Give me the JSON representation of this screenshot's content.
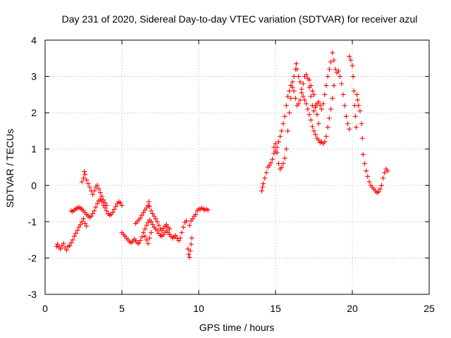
{
  "chart_data": {
    "type": "scatter",
    "title": "Day 231 of 2020, Sidereal Day-to-day VTEC variation (SDTVAR) for receiver azul",
    "xlabel": "GPS time / hours",
    "ylabel": "SDTVAR / TECUs",
    "xlim": [
      0,
      25
    ],
    "ylim": [
      -3,
      4
    ],
    "grid": true,
    "marker": "+",
    "color": "#ff0000",
    "xticks": [
      0,
      5,
      10,
      15,
      20,
      25
    ],
    "xtick_labels": [
      "0",
      "5",
      "10",
      "15",
      "20",
      "25"
    ],
    "yticks": [
      -3,
      -2,
      -1,
      0,
      1,
      2,
      3,
      4
    ],
    "ytick_labels": [
      "-3",
      "-2",
      "-1",
      "0",
      "1",
      "2",
      "3",
      "4"
    ],
    "series": [
      {
        "name": "SDTVAR",
        "points": [
          [
            0.75,
            -1.68
          ],
          [
            0.8,
            -1.62
          ],
          [
            0.9,
            -1.7
          ],
          [
            1.0,
            -1.75
          ],
          [
            1.1,
            -1.66
          ],
          [
            1.2,
            -1.6
          ],
          [
            1.3,
            -1.72
          ],
          [
            1.4,
            -1.78
          ],
          [
            1.5,
            -1.68
          ],
          [
            1.6,
            -1.66
          ],
          [
            1.7,
            -1.58
          ],
          [
            1.8,
            -1.5
          ],
          [
            1.9,
            -1.4
          ],
          [
            2.0,
            -1.32
          ],
          [
            2.1,
            -1.24
          ],
          [
            2.2,
            -1.15
          ],
          [
            2.3,
            -1.08
          ],
          [
            2.4,
            -1.0
          ],
          [
            2.5,
            -0.92
          ],
          [
            2.6,
            -1.05
          ],
          [
            2.7,
            -1.12
          ],
          [
            1.7,
            -0.7
          ],
          [
            1.8,
            -0.72
          ],
          [
            1.9,
            -0.68
          ],
          [
            2.0,
            -0.65
          ],
          [
            2.1,
            -0.62
          ],
          [
            2.2,
            -0.6
          ],
          [
            2.3,
            -0.63
          ],
          [
            2.4,
            -0.66
          ],
          [
            2.5,
            -0.7
          ],
          [
            2.6,
            -0.75
          ],
          [
            2.7,
            -0.8
          ],
          [
            2.8,
            -0.84
          ],
          [
            2.9,
            -0.88
          ],
          [
            3.0,
            -0.85
          ],
          [
            3.1,
            -0.78
          ],
          [
            3.2,
            -0.7
          ],
          [
            3.3,
            -0.6
          ],
          [
            3.4,
            -0.5
          ],
          [
            3.5,
            -0.42
          ],
          [
            3.6,
            -0.38
          ],
          [
            3.7,
            -0.45
          ],
          [
            3.8,
            -0.55
          ],
          [
            3.9,
            -0.62
          ],
          [
            4.0,
            -0.7
          ],
          [
            4.1,
            -0.78
          ],
          [
            4.2,
            -0.82
          ],
          [
            4.3,
            -0.8
          ],
          [
            4.4,
            -0.74
          ],
          [
            4.5,
            -0.66
          ],
          [
            4.6,
            -0.58
          ],
          [
            4.7,
            -0.5
          ],
          [
            4.8,
            -0.45
          ],
          [
            4.9,
            -0.48
          ],
          [
            5.0,
            -0.55
          ],
          [
            2.4,
            0.1
          ],
          [
            2.5,
            0.2
          ],
          [
            2.55,
            0.38
          ],
          [
            2.6,
            0.3
          ],
          [
            2.7,
            0.15
          ],
          [
            2.8,
            0.05
          ],
          [
            2.9,
            -0.05
          ],
          [
            3.0,
            -0.15
          ],
          [
            3.1,
            -0.25
          ],
          [
            3.2,
            -0.15
          ],
          [
            3.3,
            -0.05
          ],
          [
            3.4,
            0.0
          ],
          [
            3.5,
            -0.1
          ],
          [
            3.6,
            -0.2
          ],
          [
            3.7,
            -0.3
          ],
          [
            3.8,
            -0.4
          ],
          [
            3.9,
            -0.48
          ],
          [
            4.0,
            -0.55
          ],
          [
            5.0,
            -1.3
          ],
          [
            5.1,
            -1.35
          ],
          [
            5.2,
            -1.4
          ],
          [
            5.3,
            -1.45
          ],
          [
            5.4,
            -1.5
          ],
          [
            5.5,
            -1.55
          ],
          [
            5.6,
            -1.58
          ],
          [
            5.7,
            -1.54
          ],
          [
            5.8,
            -1.48
          ],
          [
            5.9,
            -1.52
          ],
          [
            6.0,
            -1.58
          ],
          [
            6.1,
            -1.6
          ],
          [
            6.2,
            -1.52
          ],
          [
            6.3,
            -1.42
          ],
          [
            6.4,
            -1.3
          ],
          [
            6.5,
            -1.2
          ],
          [
            6.6,
            -1.1
          ],
          [
            6.7,
            -1.02
          ],
          [
            6.8,
            -0.95
          ],
          [
            6.9,
            -1.0
          ],
          [
            7.0,
            -1.08
          ],
          [
            7.1,
            -1.15
          ],
          [
            7.2,
            -1.2
          ],
          [
            7.3,
            -1.25
          ],
          [
            7.4,
            -1.32
          ],
          [
            7.5,
            -1.38
          ],
          [
            7.6,
            -1.4
          ],
          [
            7.7,
            -1.36
          ],
          [
            7.8,
            -1.3
          ],
          [
            7.9,
            -1.25
          ],
          [
            8.0,
            -1.3
          ],
          [
            8.1,
            -1.35
          ],
          [
            8.2,
            -1.4
          ],
          [
            8.3,
            -1.45
          ],
          [
            8.4,
            -1.42
          ],
          [
            8.5,
            -1.38
          ],
          [
            8.6,
            -1.46
          ],
          [
            8.7,
            -1.52
          ],
          [
            8.8,
            -1.45
          ],
          [
            8.9,
            -1.3
          ],
          [
            9.0,
            -1.15
          ],
          [
            9.1,
            -1.02
          ],
          [
            9.2,
            -0.98
          ],
          [
            5.9,
            -1.05
          ],
          [
            6.0,
            -1.0
          ],
          [
            6.1,
            -0.95
          ],
          [
            6.2,
            -0.9
          ],
          [
            6.3,
            -0.82
          ],
          [
            6.4,
            -0.75
          ],
          [
            6.5,
            -0.68
          ],
          [
            6.6,
            -0.62
          ],
          [
            6.7,
            -0.55
          ],
          [
            6.75,
            -0.45
          ],
          [
            6.8,
            -0.58
          ],
          [
            6.9,
            -0.7
          ],
          [
            7.0,
            -0.78
          ],
          [
            7.1,
            -0.85
          ],
          [
            7.2,
            -0.92
          ],
          [
            7.3,
            -1.0
          ],
          [
            7.4,
            -1.1
          ],
          [
            7.5,
            -1.2
          ],
          [
            7.6,
            -1.25
          ],
          [
            7.7,
            -1.18
          ],
          [
            7.8,
            -1.12
          ],
          [
            7.9,
            -1.08
          ],
          [
            8.0,
            -1.15
          ],
          [
            8.1,
            -1.2
          ],
          [
            6.5,
            -1.4
          ],
          [
            6.6,
            -1.5
          ],
          [
            6.7,
            -1.6
          ],
          [
            6.8,
            -1.45
          ],
          [
            6.9,
            -1.3
          ],
          [
            9.3,
            -1.75
          ],
          [
            9.35,
            -1.9
          ],
          [
            9.4,
            -1.98
          ],
          [
            9.45,
            -1.8
          ],
          [
            9.5,
            -1.62
          ],
          [
            9.55,
            -1.45
          ],
          [
            9.4,
            -1.1
          ],
          [
            9.5,
            -0.98
          ],
          [
            9.6,
            -0.92
          ],
          [
            9.7,
            -0.85
          ],
          [
            9.8,
            -0.8
          ],
          [
            9.9,
            -0.7
          ],
          [
            10.0,
            -0.65
          ],
          [
            10.1,
            -0.66
          ],
          [
            10.2,
            -0.62
          ],
          [
            10.3,
            -0.65
          ],
          [
            10.4,
            -0.68
          ],
          [
            10.5,
            -0.65
          ],
          [
            10.6,
            -0.68
          ],
          [
            14.1,
            -0.15
          ],
          [
            14.15,
            -0.05
          ],
          [
            14.2,
            0.05
          ],
          [
            14.3,
            0.2
          ],
          [
            14.4,
            0.35
          ],
          [
            14.5,
            0.5
          ],
          [
            14.6,
            0.55
          ],
          [
            14.7,
            0.62
          ],
          [
            14.8,
            0.72
          ],
          [
            14.9,
            0.88
          ],
          [
            15.0,
            0.95
          ],
          [
            15.1,
            1.05
          ],
          [
            15.2,
            1.2
          ],
          [
            15.3,
            1.35
          ],
          [
            15.4,
            1.5
          ],
          [
            15.5,
            1.7
          ],
          [
            15.6,
            1.9
          ],
          [
            15.7,
            2.2
          ],
          [
            15.8,
            2.45
          ],
          [
            15.9,
            2.6
          ],
          [
            16.0,
            2.75
          ],
          [
            16.1,
            2.85
          ],
          [
            16.2,
            3.0
          ],
          [
            16.3,
            3.2
          ],
          [
            16.35,
            3.35
          ],
          [
            16.4,
            3.2
          ],
          [
            16.5,
            3.0
          ],
          [
            16.6,
            2.85
          ],
          [
            16.7,
            2.65
          ],
          [
            16.8,
            2.45
          ],
          [
            16.9,
            2.35
          ],
          [
            17.0,
            2.25
          ],
          [
            17.1,
            2.1
          ],
          [
            17.2,
            1.95
          ],
          [
            17.3,
            1.8
          ],
          [
            17.4,
            1.62
          ],
          [
            17.5,
            1.5
          ],
          [
            17.6,
            1.4
          ],
          [
            17.7,
            1.3
          ],
          [
            17.8,
            1.25
          ],
          [
            17.9,
            1.18
          ],
          [
            18.0,
            1.2
          ],
          [
            18.1,
            1.15
          ],
          [
            18.2,
            1.2
          ],
          [
            18.3,
            1.35
          ],
          [
            18.4,
            1.6
          ],
          [
            18.5,
            1.85
          ],
          [
            18.6,
            2.1
          ],
          [
            18.7,
            2.4
          ],
          [
            18.8,
            2.75
          ],
          [
            14.9,
            1.05
          ],
          [
            15.0,
            1.15
          ],
          [
            15.1,
            0.9
          ],
          [
            15.2,
            0.6
          ],
          [
            15.3,
            0.45
          ],
          [
            15.4,
            0.5
          ],
          [
            15.5,
            0.6
          ],
          [
            15.6,
            0.75
          ],
          [
            15.7,
            1.0
          ],
          [
            15.8,
            1.5
          ],
          [
            15.9,
            2.0
          ],
          [
            16.0,
            2.4
          ],
          [
            16.1,
            2.7
          ],
          [
            16.2,
            2.6
          ],
          [
            16.3,
            2.4
          ],
          [
            16.4,
            2.2
          ],
          [
            16.5,
            2.25
          ],
          [
            16.6,
            2.35
          ],
          [
            16.7,
            2.55
          ],
          [
            16.8,
            2.8
          ],
          [
            16.9,
            3.0
          ],
          [
            17.0,
            3.05
          ],
          [
            17.1,
            2.95
          ],
          [
            17.2,
            2.7
          ],
          [
            17.3,
            2.45
          ],
          [
            17.4,
            2.2
          ],
          [
            17.5,
            2.05
          ],
          [
            17.6,
            2.15
          ],
          [
            17.7,
            2.25
          ],
          [
            17.8,
            2.3
          ],
          [
            17.9,
            2.2
          ],
          [
            18.0,
            2.1
          ],
          [
            18.1,
            2.25
          ],
          [
            18.2,
            2.5
          ],
          [
            18.3,
            2.75
          ],
          [
            18.4,
            3.0
          ],
          [
            18.5,
            3.2
          ],
          [
            18.6,
            3.4
          ],
          [
            18.7,
            3.65
          ],
          [
            18.8,
            3.45
          ],
          [
            18.9,
            3.2
          ],
          [
            19.0,
            3.1
          ],
          [
            19.1,
            3.15
          ],
          [
            19.2,
            3.0
          ],
          [
            19.3,
            2.8
          ],
          [
            19.4,
            2.5
          ],
          [
            19.5,
            2.2
          ],
          [
            19.6,
            1.9
          ],
          [
            19.7,
            1.7
          ],
          [
            19.8,
            1.55
          ],
          [
            17.2,
            2.9
          ],
          [
            17.3,
            2.75
          ],
          [
            17.4,
            2.6
          ],
          [
            17.5,
            2.5
          ],
          [
            17.6,
            2.2
          ],
          [
            17.7,
            1.95
          ],
          [
            17.8,
            1.7
          ],
          [
            19.8,
            3.55
          ],
          [
            19.9,
            3.45
          ],
          [
            20.0,
            3.3
          ],
          [
            20.05,
            3.0
          ],
          [
            20.1,
            2.6
          ],
          [
            20.15,
            2.2
          ],
          [
            20.2,
            1.9
          ],
          [
            20.25,
            1.6
          ],
          [
            20.3,
            2.5
          ],
          [
            20.35,
            2.35
          ],
          [
            20.4,
            2.2
          ],
          [
            20.5,
            2.05
          ],
          [
            20.6,
            1.7
          ],
          [
            20.65,
            1.3
          ],
          [
            20.7,
            0.85
          ],
          [
            20.8,
            0.6
          ],
          [
            20.9,
            0.4
          ],
          [
            21.0,
            0.25
          ],
          [
            21.1,
            0.1
          ],
          [
            21.2,
            0.0
          ],
          [
            21.3,
            -0.05
          ],
          [
            21.4,
            -0.1
          ],
          [
            21.5,
            -0.15
          ],
          [
            21.6,
            -0.2
          ],
          [
            21.7,
            -0.18
          ],
          [
            21.8,
            -0.1
          ],
          [
            21.9,
            0.0
          ],
          [
            22.0,
            0.2
          ],
          [
            22.1,
            0.35
          ],
          [
            22.2,
            0.45
          ],
          [
            22.3,
            0.4
          ]
        ]
      }
    ]
  }
}
